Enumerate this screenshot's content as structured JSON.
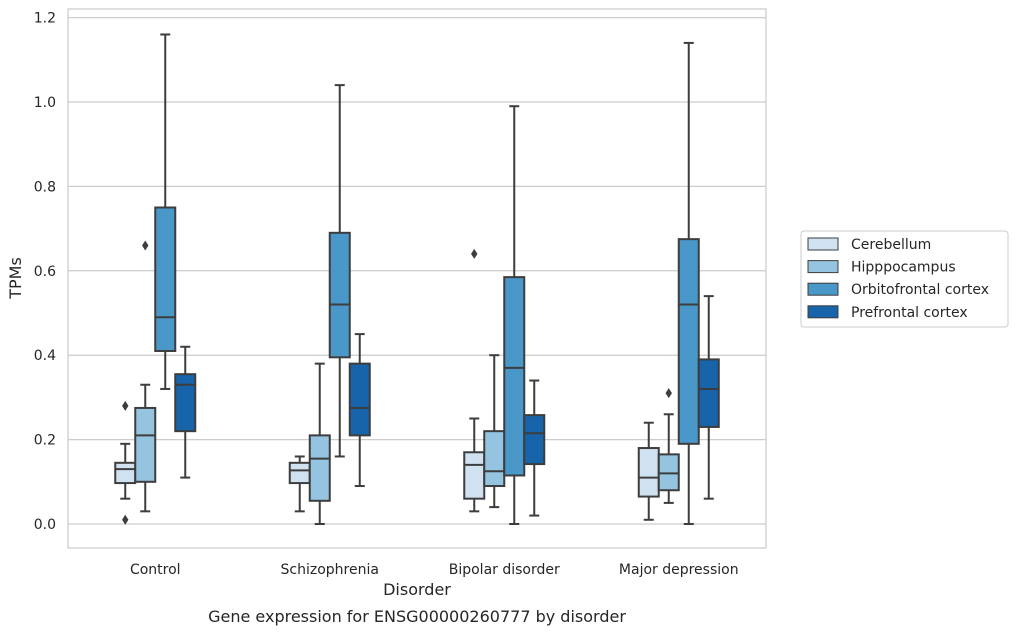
{
  "chart_data": {
    "type": "boxplot",
    "title": "",
    "caption": "Gene expression for ENSG00000260777 by disorder",
    "xlabel": "Disorder",
    "ylabel": "TPMs",
    "ylim": [
      -0.055,
      1.22
    ],
    "yticks": [
      0.0,
      0.2,
      0.4,
      0.6,
      0.8,
      1.0,
      1.2
    ],
    "ytick_labels": [
      "0.0",
      "0.2",
      "0.4",
      "0.6",
      "0.8",
      "1.0",
      "1.2"
    ],
    "grid": "horizontal",
    "legend_position": "right",
    "categories": [
      "Control",
      "Schizophrenia",
      "Bipolar disorder",
      "Major depression"
    ],
    "series": [
      {
        "name": "Cerebellum",
        "color": "#d0e1f2",
        "boxes": [
          {
            "whislo": 0.06,
            "q1": 0.097,
            "med": 0.13,
            "q3": 0.145,
            "whishi": 0.19,
            "fliers": [
              0.28,
              0.01
            ]
          },
          {
            "whislo": 0.03,
            "q1": 0.097,
            "med": 0.127,
            "q3": 0.145,
            "whishi": 0.16,
            "fliers": []
          },
          {
            "whislo": 0.03,
            "q1": 0.06,
            "med": 0.14,
            "q3": 0.17,
            "whishi": 0.25,
            "fliers": [
              0.64
            ]
          },
          {
            "whislo": 0.01,
            "q1": 0.065,
            "med": 0.11,
            "q3": 0.18,
            "whishi": 0.24,
            "fliers": []
          }
        ]
      },
      {
        "name": "Hipppocampus",
        "color": "#94c4df",
        "boxes": [
          {
            "whislo": 0.03,
            "q1": 0.1,
            "med": 0.21,
            "q3": 0.275,
            "whishi": 0.33,
            "fliers": [
              0.66
            ]
          },
          {
            "whislo": 0.0,
            "q1": 0.055,
            "med": 0.155,
            "q3": 0.21,
            "whishi": 0.38,
            "fliers": []
          },
          {
            "whislo": 0.04,
            "q1": 0.09,
            "med": 0.125,
            "q3": 0.22,
            "whishi": 0.4,
            "fliers": []
          },
          {
            "whislo": 0.05,
            "q1": 0.08,
            "med": 0.12,
            "q3": 0.165,
            "whishi": 0.26,
            "fliers": [
              0.31
            ]
          }
        ]
      },
      {
        "name": "Orbitofrontal cortex",
        "color": "#4a98c9",
        "boxes": [
          {
            "whislo": 0.32,
            "q1": 0.41,
            "med": 0.49,
            "q3": 0.75,
            "whishi": 1.16,
            "fliers": []
          },
          {
            "whislo": 0.16,
            "q1": 0.395,
            "med": 0.52,
            "q3": 0.69,
            "whishi": 1.04,
            "fliers": []
          },
          {
            "whislo": 0.0,
            "q1": 0.115,
            "med": 0.37,
            "q3": 0.585,
            "whishi": 0.99,
            "fliers": []
          },
          {
            "whislo": 0.0,
            "q1": 0.19,
            "med": 0.52,
            "q3": 0.675,
            "whishi": 1.14,
            "fliers": []
          }
        ]
      },
      {
        "name": "Prefrontal cortex",
        "color": "#1764ab",
        "boxes": [
          {
            "whislo": 0.11,
            "q1": 0.22,
            "med": 0.33,
            "q3": 0.355,
            "whishi": 0.42,
            "fliers": []
          },
          {
            "whislo": 0.09,
            "q1": 0.21,
            "med": 0.275,
            "q3": 0.38,
            "whishi": 0.45,
            "fliers": []
          },
          {
            "whislo": 0.02,
            "q1": 0.142,
            "med": 0.215,
            "q3": 0.258,
            "whishi": 0.34,
            "fliers": []
          },
          {
            "whislo": 0.06,
            "q1": 0.23,
            "med": 0.32,
            "q3": 0.39,
            "whishi": 0.54,
            "fliers": []
          }
        ]
      }
    ]
  }
}
